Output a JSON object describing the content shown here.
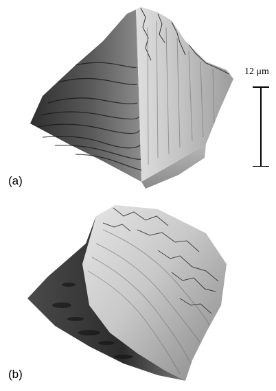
{
  "panels": [
    {
      "label": "(a)",
      "description_icon": "surface-topography-ridge-icon"
    },
    {
      "label": "(b)",
      "description_icon": "surface-topography-slope-icon"
    }
  ],
  "scale_bar": {
    "label": "12 μm",
    "value": 12,
    "unit": "μm"
  },
  "colors": {
    "background": "#ffffff",
    "surface_light": "#d8d8d8",
    "surface_mid": "#9a9a9a",
    "surface_dark": "#3a3a3a"
  }
}
